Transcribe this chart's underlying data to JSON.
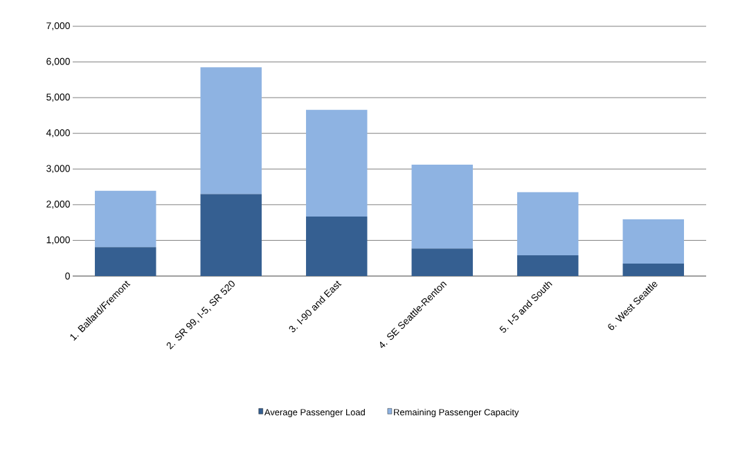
{
  "chart_data": {
    "type": "bar",
    "stacked": true,
    "categories": [
      "1. Ballard/Fremont",
      "2. SR 99, I-5, SR 520",
      "3. I-90 and East",
      "4. SE Seattle-Renton",
      "5. I-5 and South",
      "6. West Seattle"
    ],
    "series": [
      {
        "name": "Average Passenger Load",
        "color": "#355f91",
        "values": [
          810,
          2300,
          1670,
          770,
          580,
          350
        ]
      },
      {
        "name": "Remaining Passenger Capacity",
        "color": "#8eb3e2",
        "values": [
          1580,
          3550,
          2990,
          2350,
          1770,
          1240
        ]
      }
    ],
    "ylim": [
      0,
      7000
    ],
    "yticks": [
      {
        "value": 0,
        "label": "0"
      },
      {
        "value": 1000,
        "label": "1,000"
      },
      {
        "value": 2000,
        "label": "2,000"
      },
      {
        "value": 3000,
        "label": "3,000"
      },
      {
        "value": 4000,
        "label": "4,000"
      },
      {
        "value": 5000,
        "label": "5,000"
      },
      {
        "value": 6000,
        "label": "6,000"
      },
      {
        "value": 7000,
        "label": "7,000"
      }
    ],
    "grid": "y",
    "legend": "bottom"
  }
}
